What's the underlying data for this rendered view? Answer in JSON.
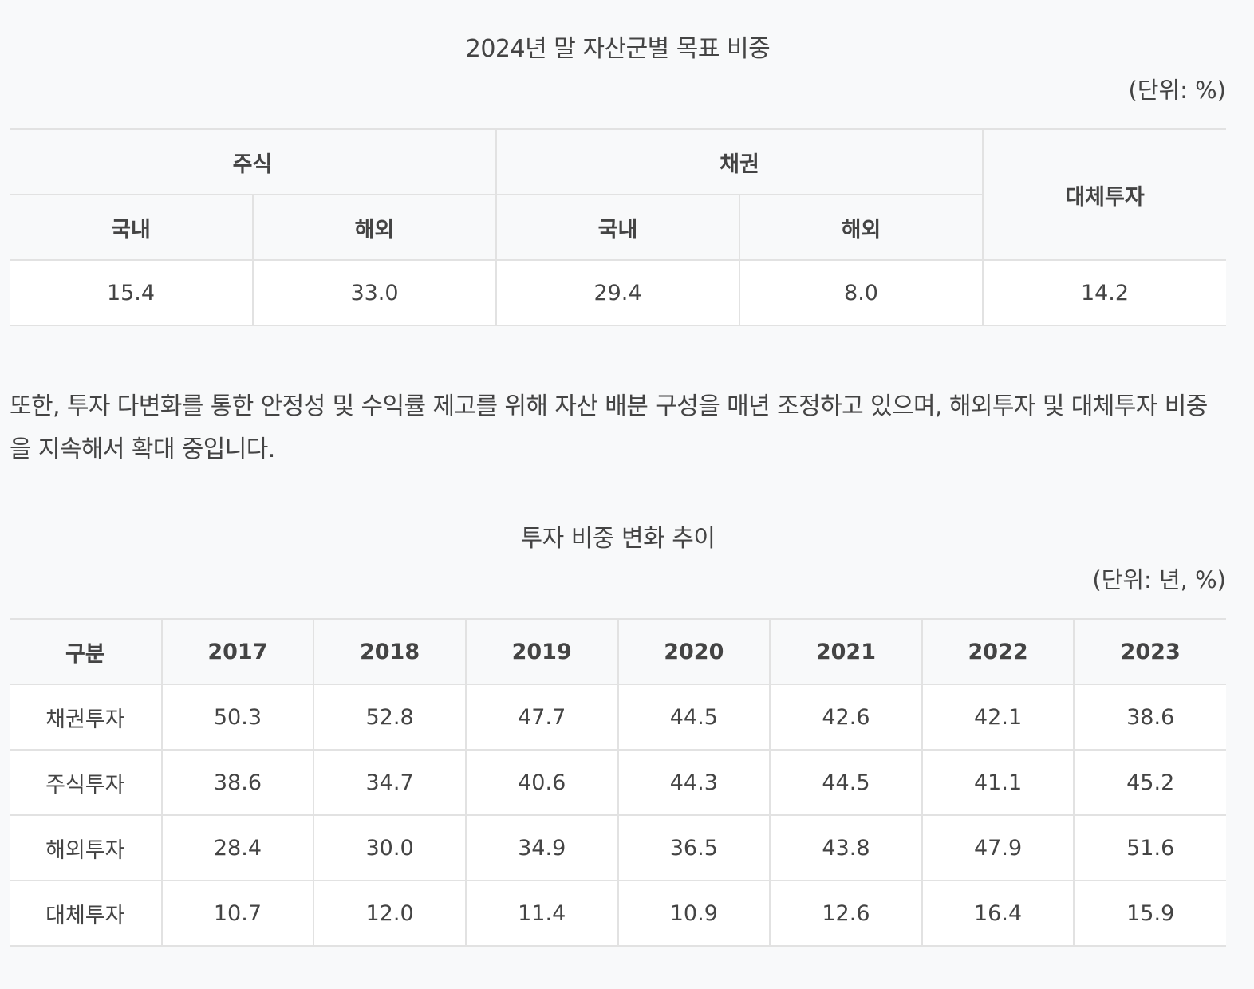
{
  "table1": {
    "caption": "2024년 말 자산군별 목표 비중",
    "unit": "(단위: %)",
    "header_groups": {
      "stock": "주식",
      "bond": "채권",
      "alternative": "대체투자"
    },
    "sub_headers": [
      "국내",
      "해외",
      "국내",
      "해외"
    ],
    "values": [
      "15.4",
      "33.0",
      "29.4",
      "8.0",
      "14.2"
    ]
  },
  "paragraph": "또한, 투자 다변화를 통한 안정성 및 수익률 제고를 위해 자산 배분 구성을 매년 조정하고 있으며, 해외투자 및 대체투자 비중을 지속해서 확대 중입니다.",
  "table2": {
    "caption": "투자 비중 변화 추이",
    "unit": "(단위: 년, %)",
    "header": [
      "구분",
      "2017",
      "2018",
      "2019",
      "2020",
      "2021",
      "2022",
      "2023"
    ],
    "rows": [
      {
        "label": "채권투자",
        "values": [
          "50.3",
          "52.8",
          "47.7",
          "44.5",
          "42.6",
          "42.1",
          "38.6"
        ]
      },
      {
        "label": "주식투자",
        "values": [
          "38.6",
          "34.7",
          "40.6",
          "44.3",
          "44.5",
          "41.1",
          "45.2"
        ]
      },
      {
        "label": "해외투자",
        "values": [
          "28.4",
          "30.0",
          "34.9",
          "36.5",
          "43.8",
          "47.9",
          "51.6"
        ]
      },
      {
        "label": "대체투자",
        "values": [
          "10.7",
          "12.0",
          "11.4",
          "10.9",
          "12.6",
          "16.4",
          "15.9"
        ]
      }
    ]
  }
}
